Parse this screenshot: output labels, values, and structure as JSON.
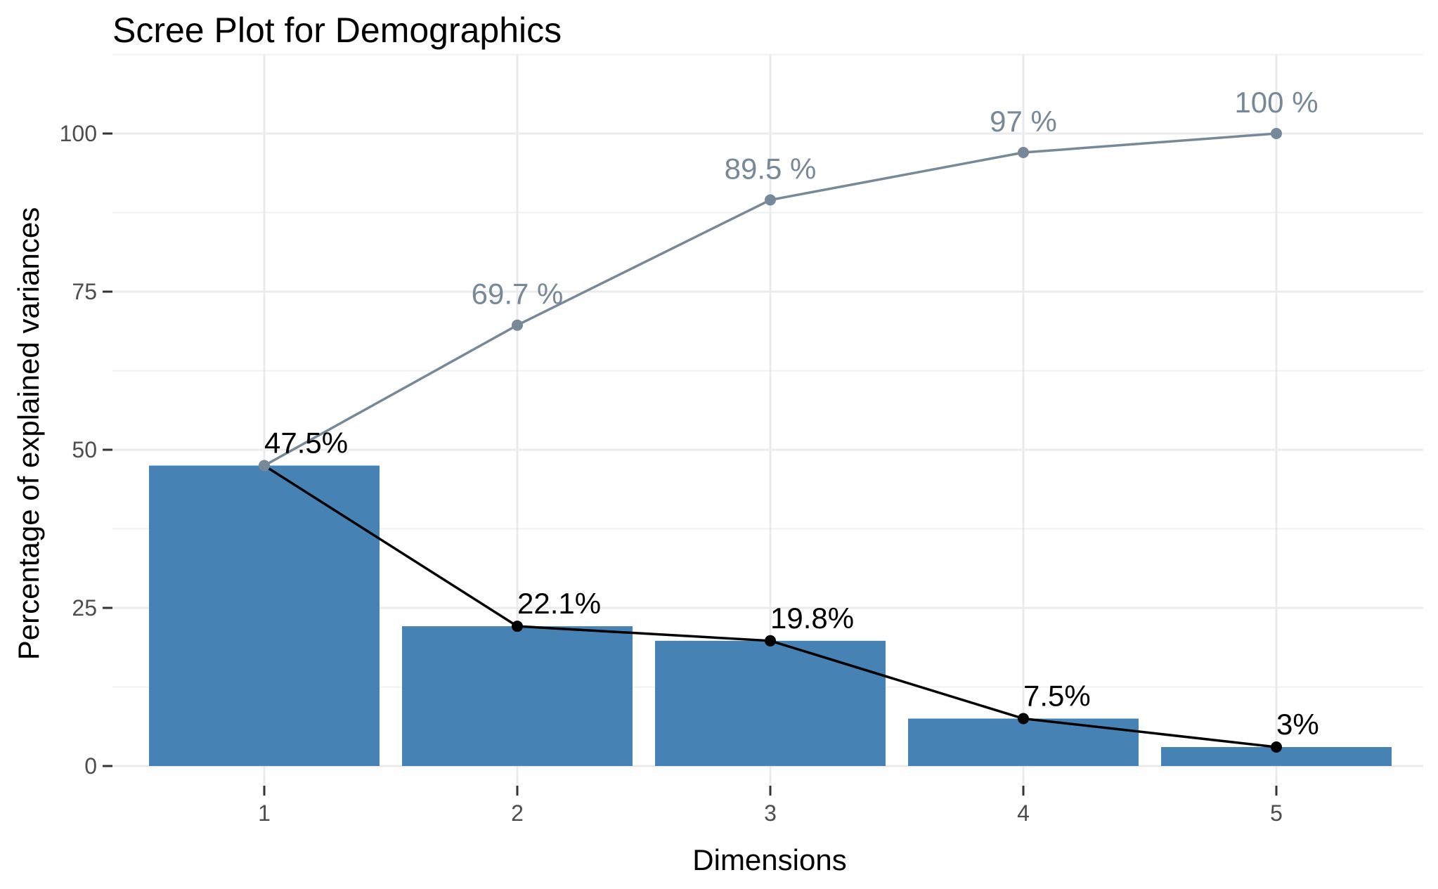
{
  "chart_data": {
    "type": "bar",
    "title": "Scree Plot for Demographics",
    "xlabel": "Dimensions",
    "ylabel": "Percentage of explained variances",
    "categories": [
      "1",
      "2",
      "3",
      "4",
      "5"
    ],
    "values": [
      47.5,
      22.1,
      19.8,
      7.5,
      3.0
    ],
    "value_labels": [
      "47.5%",
      "22.1%",
      "19.8%",
      "7.5%",
      "3%"
    ],
    "line_overlay": {
      "type": "line",
      "values": [
        47.5,
        22.1,
        19.8,
        7.5,
        3.0
      ],
      "color": "#000000"
    },
    "cumulative": {
      "type": "line",
      "values": [
        47.5,
        69.7,
        89.5,
        97.0,
        100.0
      ],
      "labels": [
        "",
        "69.7 %",
        "89.5 %",
        "97 %",
        "100 %"
      ],
      "color": "#778899"
    },
    "ylim": [
      0,
      110
    ],
    "yticks": [
      0,
      25,
      50,
      75,
      100
    ],
    "ytick_labels": [
      "0",
      "25",
      "50",
      "75",
      "100"
    ],
    "grid": true,
    "legend": "none",
    "bar_color": "#4682B4"
  }
}
